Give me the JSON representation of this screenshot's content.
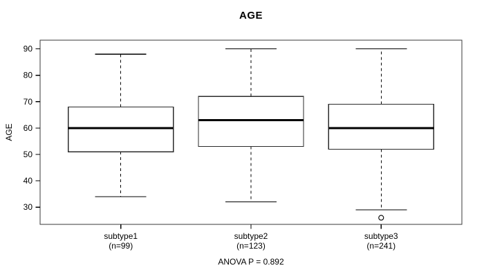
{
  "chart_data": {
    "type": "boxplot",
    "title": "AGE",
    "xlabel": "",
    "ylabel": "AGE",
    "annotation": "ANOVA P = 0.892",
    "ylim": [
      23.5,
      93.3
    ],
    "yticks": [
      30,
      40,
      50,
      60,
      70,
      80,
      90
    ],
    "grid": false,
    "legend": "none",
    "categories": [
      "subtype1",
      "subtype2",
      "subtype3"
    ],
    "groups": [
      {
        "label": "subtype1",
        "sublabel": "(n=99)",
        "n": 99,
        "whisker_low": 34,
        "q1": 51,
        "median": 60,
        "q3": 68,
        "whisker_high": 88,
        "outliers": []
      },
      {
        "label": "subtype2",
        "sublabel": "(n=123)",
        "n": 123,
        "whisker_low": 32,
        "q1": 53,
        "median": 63,
        "q3": 72,
        "whisker_high": 90,
        "outliers": []
      },
      {
        "label": "subtype3",
        "sublabel": "(n=241)",
        "n": 241,
        "whisker_low": 29,
        "q1": 52,
        "median": 60,
        "q3": 69,
        "whisker_high": 90,
        "outliers": [
          26
        ]
      }
    ],
    "colors": {
      "box_stroke": "#2b2b2b",
      "median_stroke": "#000000",
      "whisker_stroke": "#000000",
      "frame_stroke": "#3a3a3a",
      "fill": "#ffffff",
      "text": "#000000"
    }
  }
}
